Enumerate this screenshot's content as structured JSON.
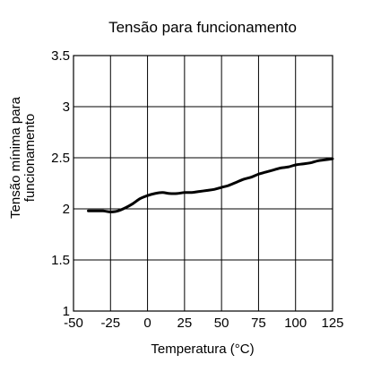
{
  "chart_data": {
    "type": "line",
    "title": "Tensão para funcionamento",
    "xlabel": "Temperatura (°C)",
    "ylabel_lines": [
      "Tensão mínima para",
      "funcionamento"
    ],
    "xlim": [
      -50,
      125
    ],
    "ylim": [
      1,
      3.5
    ],
    "xticks": [
      -50,
      -25,
      0,
      25,
      50,
      75,
      100,
      125
    ],
    "xtick_labels": [
      "-50",
      "-25",
      "0",
      "25",
      "50",
      "75",
      "100",
      "125"
    ],
    "yticks": [
      1,
      1.5,
      2,
      2.5,
      3,
      3.5
    ],
    "ytick_labels": [
      "1",
      "1.5",
      "2",
      "2.5",
      "3",
      "3.5"
    ],
    "grid": true,
    "colors": {
      "line": "#000000",
      "grid": "#000000",
      "background": "#ffffff"
    },
    "series": [
      {
        "x": [
          -40,
          -35,
          -30,
          -25,
          -20,
          -15,
          -10,
          -5,
          0,
          5,
          10,
          15,
          20,
          25,
          30,
          35,
          40,
          45,
          50,
          55,
          60,
          65,
          70,
          75,
          80,
          85,
          90,
          95,
          100,
          105,
          110,
          115,
          120,
          125
        ],
        "y": [
          1.98,
          1.98,
          1.98,
          1.97,
          1.98,
          2.01,
          2.05,
          2.1,
          2.13,
          2.15,
          2.16,
          2.15,
          2.15,
          2.16,
          2.16,
          2.17,
          2.18,
          2.19,
          2.21,
          2.23,
          2.26,
          2.29,
          2.31,
          2.34,
          2.36,
          2.38,
          2.4,
          2.41,
          2.43,
          2.44,
          2.45,
          2.47,
          2.48,
          2.49
        ]
      }
    ]
  }
}
